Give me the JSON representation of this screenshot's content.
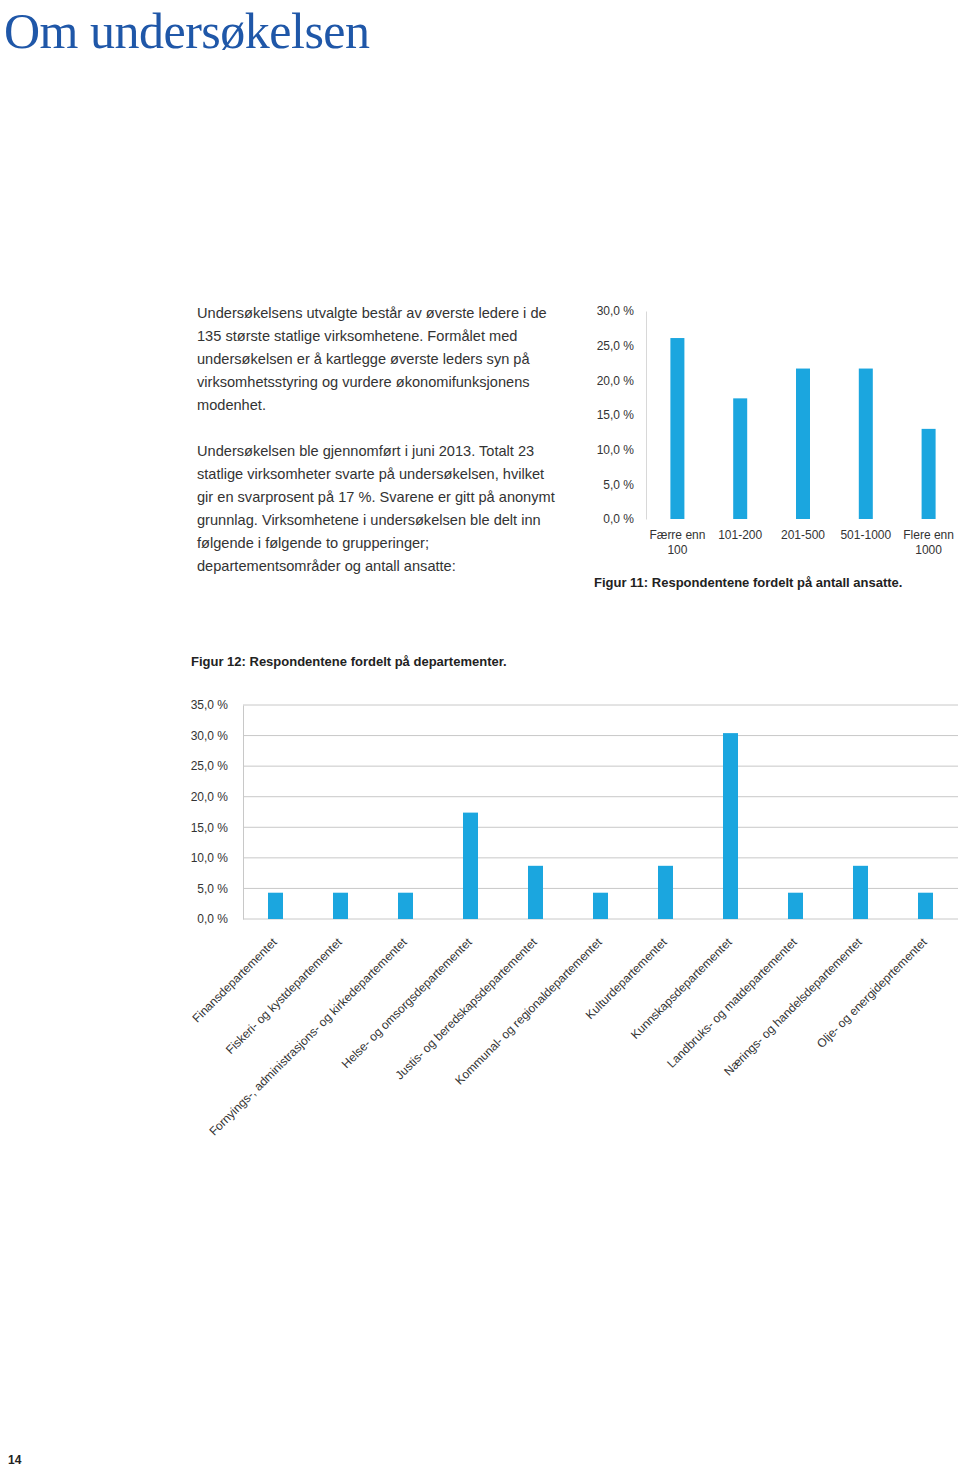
{
  "title": "Om undersøkelsen",
  "paragraphs": [
    "Undersøkelsens utvalgte består av øverste ledere i de 135 største statlige virksomhetene. Formålet med undersøkelsen er å kartlegge øverste leders syn på virksomhetsstyring og vurdere økonomifunksjonens modenhet.",
    "Undersøkelsen ble gjennomført i juni 2013. Totalt 23 statlige virksomheter svarte på undersøkelsen, hvilket gir en svarprosent på 17 %. Svarene er gitt på anonymt grunnlag. Virksomhetene i undersøkelsen ble delt inn følgende i følgende to grupperinger; departementsområder og antall ansatte:"
  ],
  "page_number": "14",
  "chart_data": [
    {
      "type": "bar",
      "title": "Figur 11: Respondentene fordelt på antall ansatte.",
      "categories": [
        "Færre enn 100",
        "101-200",
        "201-500",
        "501-1000",
        "Flere enn 1000"
      ],
      "values": [
        26.1,
        17.4,
        21.7,
        21.7,
        13.0
      ],
      "color": "#1ba6df",
      "ylim": [
        0,
        30
      ],
      "yticks": [
        {
          "value": 0,
          "label": "0,0 %"
        },
        {
          "value": 5,
          "label": "5,0 %"
        },
        {
          "value": 10,
          "label": "10,0 %"
        },
        {
          "value": 15,
          "label": "15,0 %"
        },
        {
          "value": 20,
          "label": "20,0 %"
        },
        {
          "value": 25,
          "label": "25,0 %"
        },
        {
          "value": 30,
          "label": "30,0 %"
        }
      ],
      "grid": false
    },
    {
      "type": "bar",
      "title": "Figur 12: Respondentene fordelt på departementer.",
      "categories": [
        "Finansdepartementet",
        "Fiskeri- og kystdepartementet",
        "Fornyings-, administrasjons- og kirkedepartementet",
        "Helse- og omsorgsdepartementet",
        "Justis- og beredskapsdepartementet",
        "Kommunal- og regionaldepartementet",
        "Kulturdepartementet",
        "Kunnskapsdepartementet",
        "Landbruks- og matdepartementet",
        "Nærings- og handelsdepartementet",
        "Olje- og energideprtementet"
      ],
      "values": [
        4.3,
        4.3,
        4.3,
        17.4,
        8.7,
        4.3,
        8.7,
        30.4,
        4.3,
        8.7,
        4.3
      ],
      "color": "#1ba6df",
      "ylim": [
        0,
        35
      ],
      "yticks": [
        {
          "value": 0,
          "label": "0,0 %"
        },
        {
          "value": 5,
          "label": "5,0 %"
        },
        {
          "value": 10,
          "label": "10,0 %"
        },
        {
          "value": 15,
          "label": "15,0 %"
        },
        {
          "value": 20,
          "label": "20,0 %"
        },
        {
          "value": 25,
          "label": "25,0 %"
        },
        {
          "value": 30,
          "label": "30,0 %"
        },
        {
          "value": 35,
          "label": "35,0 %"
        }
      ],
      "grid": true
    }
  ]
}
